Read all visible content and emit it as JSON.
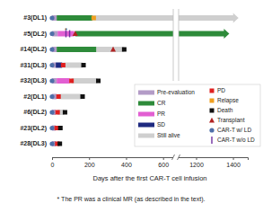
{
  "chart_data": {
    "type": "swimmer",
    "xlabel": "Days after the first CAR-T cell infusion",
    "footnote": "* The PR was a clinical MR (as described in the text).",
    "xlim": [
      0,
      1480
    ],
    "axis_break": [
      650,
      1110
    ],
    "xticks": [
      0,
      200,
      400,
      600,
      1200,
      1400
    ],
    "annotation": {
      "text": "*",
      "row": 1,
      "day": 75
    },
    "states": [
      {
        "name": "Pre-evaluation",
        "color": "#b39cc7"
      },
      {
        "name": "CR",
        "color": "#2e8b3a"
      },
      {
        "name": "PR",
        "color": "#e25fd2"
      },
      {
        "name": "SD",
        "color": "#1f2a80"
      },
      {
        "name": "Still alive",
        "color": "#cfcfcf"
      }
    ],
    "events": [
      {
        "name": "PD",
        "color": "#e02020",
        "marker": "square"
      },
      {
        "name": "Relapse",
        "color": "#f0a020",
        "marker": "square"
      },
      {
        "name": "Death",
        "color": "#111111",
        "marker": "square"
      },
      {
        "name": "Transplant",
        "color": "#b22222",
        "marker": "triangle"
      },
      {
        "name": "CAR-T w/ LD",
        "color": "#4f6fa8",
        "marker": "circle"
      },
      {
        "name": "CAR-T w/o LD",
        "color": "#7030a0",
        "marker": "tick"
      }
    ],
    "rows": [
      {
        "name": "#3(DL1)",
        "arrow": true,
        "segments": [
          {
            "state": "Pre-evaluation",
            "start": 0,
            "end": 25
          },
          {
            "state": "CR",
            "start": 25,
            "end": 220
          },
          {
            "state": "Still alive",
            "start": 220,
            "end": 1430
          }
        ],
        "events": [
          {
            "type": "CAR-T w/ LD",
            "day": 0
          },
          {
            "type": "Relapse",
            "day": 225
          }
        ]
      },
      {
        "name": "#5(DL2)",
        "arrow": true,
        "segments": [
          {
            "state": "Pre-evaluation",
            "start": 0,
            "end": 30
          },
          {
            "state": "PR",
            "start": 30,
            "end": 120
          },
          {
            "state": "CR",
            "start": 125,
            "end": 1380
          }
        ],
        "events": [
          {
            "type": "CAR-T w/ LD",
            "day": 0
          },
          {
            "type": "CAR-T w/o LD",
            "day": 75
          },
          {
            "type": "CAR-T w/o LD",
            "day": 95
          },
          {
            "type": "Transplant",
            "day": 125
          }
        ]
      },
      {
        "name": "#14(DL2)",
        "arrow": false,
        "segments": [
          {
            "state": "Pre-evaluation",
            "start": 0,
            "end": 25
          },
          {
            "state": "CR",
            "start": 25,
            "end": 240
          },
          {
            "state": "Still alive",
            "start": 240,
            "end": 390
          }
        ],
        "events": [
          {
            "type": "CAR-T w/ LD",
            "day": 0
          },
          {
            "type": "Transplant",
            "day": 330
          },
          {
            "type": "Death",
            "day": 390
          }
        ]
      },
      {
        "name": "#31(DL3)",
        "arrow": false,
        "segments": [
          {
            "state": "Pre-evaluation",
            "start": 0,
            "end": 20
          },
          {
            "state": "SD",
            "start": 20,
            "end": 55
          },
          {
            "state": "Still alive",
            "start": 60,
            "end": 165
          }
        ],
        "events": [
          {
            "type": "CAR-T w/ LD",
            "day": 0
          },
          {
            "type": "PD",
            "day": 60
          },
          {
            "type": "Death",
            "day": 170
          }
        ]
      },
      {
        "name": "#32(DL3)",
        "arrow": false,
        "segments": [
          {
            "state": "Pre-evaluation",
            "start": 0,
            "end": 25
          },
          {
            "state": "PR",
            "start": 25,
            "end": 95
          },
          {
            "state": "Still alive",
            "start": 105,
            "end": 245
          }
        ],
        "events": [
          {
            "type": "CAR-T w/ LD",
            "day": 0
          },
          {
            "type": "PD",
            "day": 105
          },
          {
            "type": "Death",
            "day": 250
          }
        ]
      },
      {
        "name": "#2(DL1)",
        "arrow": false,
        "segments": [
          {
            "state": "Pre-evaluation",
            "start": 0,
            "end": 25
          },
          {
            "state": "Still alive",
            "start": 35,
            "end": 160
          }
        ],
        "events": [
          {
            "type": "CAR-T w/ LD",
            "day": 0
          },
          {
            "type": "PD",
            "day": 35
          },
          {
            "type": "Death",
            "day": 165
          }
        ]
      },
      {
        "name": "#6(DL2)",
        "arrow": false,
        "segments": [
          {
            "state": "Pre-evaluation",
            "start": 0,
            "end": 20
          },
          {
            "state": "Still alive",
            "start": 30,
            "end": 65
          }
        ],
        "events": [
          {
            "type": "CAR-T w/ LD",
            "day": 0
          },
          {
            "type": "PD",
            "day": 30
          },
          {
            "type": "Death",
            "day": 70
          }
        ]
      },
      {
        "name": "#23(DL2)",
        "arrow": false,
        "segments": [
          {
            "state": "Pre-evaluation",
            "start": 0,
            "end": 20
          }
        ],
        "events": [
          {
            "type": "CAR-T w/ LD",
            "day": 0
          },
          {
            "type": "PD",
            "day": 25
          },
          {
            "type": "Death",
            "day": 45
          }
        ]
      },
      {
        "name": "#28(DL3)",
        "arrow": false,
        "segments": [
          {
            "state": "Pre-evaluation",
            "start": 0,
            "end": 20
          }
        ],
        "events": [
          {
            "type": "CAR-T w/ LD",
            "day": 0
          },
          {
            "type": "PD",
            "day": 28
          },
          {
            "type": "Death",
            "day": 42
          }
        ]
      }
    ]
  }
}
